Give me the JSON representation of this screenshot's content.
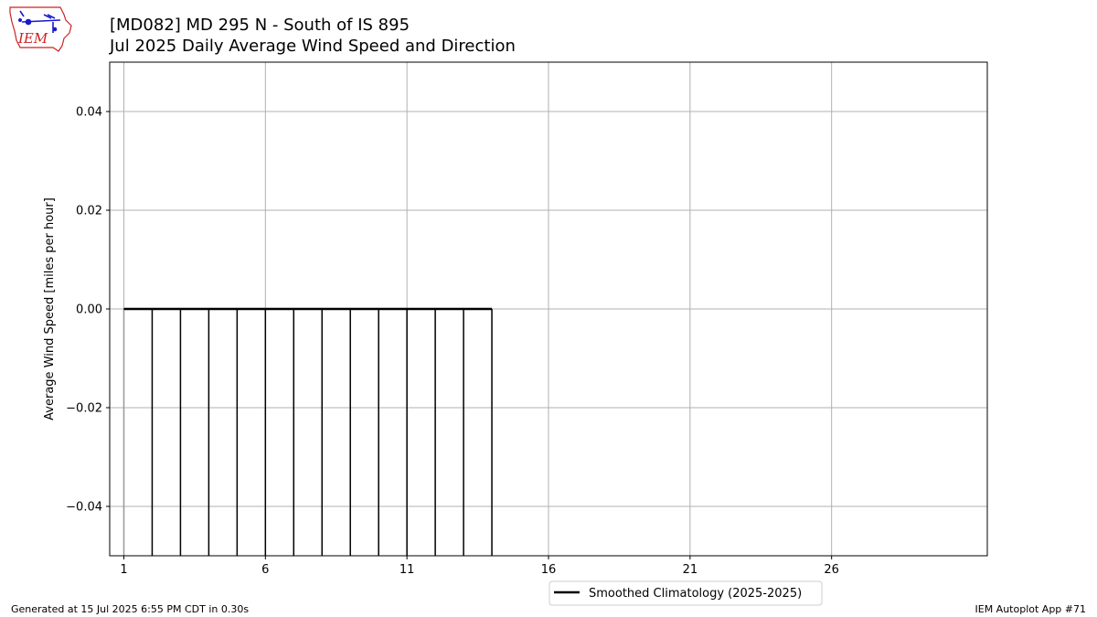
{
  "header": {
    "logo_text": "IEM",
    "title_line1": "[MD082] MD 295 N - South of IS 895",
    "title_line2": "Jul 2025 Daily Average Wind Speed and Direction"
  },
  "footer": {
    "generated": "Generated at 15 Jul 2025 6:55 PM CDT in 0.30s",
    "app": "IEM Autoplot App #71"
  },
  "chart_data": {
    "type": "bar",
    "title": "Jul 2025 Daily Average Wind Speed and Direction",
    "xlabel": "",
    "ylabel": "Average Wind Speed [miles per hour]",
    "xlim": [
      0.5,
      31.5
    ],
    "ylim": [
      -0.05,
      0.05
    ],
    "xticks": [
      1,
      6,
      11,
      16,
      21,
      26
    ],
    "yticks": [
      -0.04,
      -0.02,
      0.0,
      0.02,
      0.04
    ],
    "ytick_labels": [
      "−0.04",
      "−0.02",
      "0.00",
      "0.02",
      "0.04"
    ],
    "grid": true,
    "days": [
      1,
      2,
      3,
      4,
      5,
      6,
      7,
      8,
      9,
      10,
      11,
      12,
      13,
      14
    ],
    "values": [
      0,
      0,
      0,
      0,
      0,
      0,
      0,
      0,
      0,
      0,
      0,
      0,
      0,
      0
    ],
    "series": [
      {
        "name": "Smoothed Climatology (2025-2025)",
        "type": "line",
        "x": [
          1,
          2,
          3,
          4,
          5,
          6,
          7,
          8,
          9,
          10,
          11,
          12,
          13,
          14
        ],
        "y": [
          0,
          0,
          0,
          0,
          0,
          0,
          0,
          0,
          0,
          0,
          0,
          0,
          0,
          0
        ]
      }
    ],
    "legend_position": "bottom-center",
    "colors": {
      "bars": "#000000",
      "grid": "#b0b0b0",
      "climatology": "#000000",
      "logo_red": "#cc2222",
      "logo_blue": "#1a1acc"
    }
  }
}
